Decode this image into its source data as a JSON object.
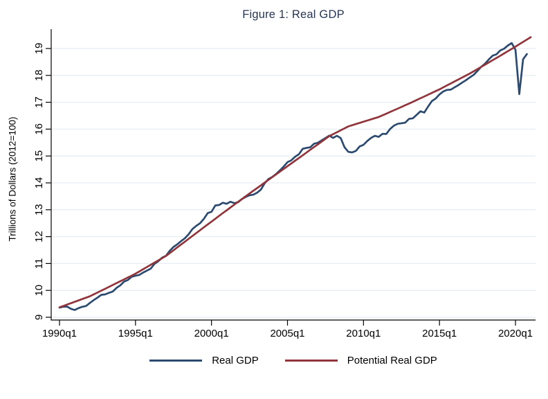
{
  "figure": {
    "title": "Figure 1: Real GDP",
    "y_axis_title": "Trillions of Dollars (2012=100)"
  },
  "chart_data": {
    "type": "line",
    "title": "Figure 1: Real GDP",
    "xlabel": "",
    "ylabel": "Trillions of Dollars (2012=100)",
    "x_unit": "quarter",
    "x_start": "1990q1",
    "x_tick_labels": [
      "1990q1",
      "1995q1",
      "2000q1",
      "2005q1",
      "2010q1",
      "2015q1",
      "2020q1"
    ],
    "x_tick_step_quarters": 20,
    "y_ticks": [
      9,
      10,
      11,
      12,
      13,
      14,
      15,
      16,
      17,
      18,
      19
    ],
    "ylim": [
      8.9,
      19.7
    ],
    "grid": "horizontal",
    "legend_position": "bottom-center",
    "colors": {
      "title": "#283553",
      "axis": "#000000",
      "grid": "#e7eef3",
      "real_gdp_line": "#2b4a6e",
      "potential_line": "#90353b"
    },
    "series": [
      {
        "name": "Real GDP",
        "color": "#2b4a6e",
        "start": "1990q1",
        "end": "2020q4",
        "values": [
          9.358,
          9.392,
          9.398,
          9.314,
          9.27,
          9.341,
          9.388,
          9.421,
          9.534,
          9.637,
          9.732,
          9.834,
          9.851,
          9.908,
          9.956,
          10.092,
          10.189,
          10.327,
          10.387,
          10.506,
          10.543,
          10.575,
          10.662,
          10.734,
          10.808,
          10.988,
          11.086,
          11.216,
          11.284,
          11.472,
          11.615,
          11.715,
          11.832,
          11.942,
          12.091,
          12.287,
          12.403,
          12.499,
          12.662,
          12.877,
          12.924,
          13.161,
          13.178,
          13.26,
          13.222,
          13.3,
          13.244,
          13.28,
          13.397,
          13.478,
          13.538,
          13.559,
          13.634,
          13.751,
          13.985,
          14.145,
          14.221,
          14.329,
          14.464,
          14.609,
          14.771,
          14.839,
          14.972,
          15.066,
          15.267,
          15.302,
          15.326,
          15.456,
          15.494,
          15.582,
          15.667,
          15.761,
          15.672,
          15.752,
          15.667,
          15.328,
          15.155,
          15.134,
          15.189,
          15.356,
          15.415,
          15.557,
          15.672,
          15.75,
          15.712,
          15.825,
          15.82,
          16.004,
          16.129,
          16.198,
          16.22,
          16.24,
          16.382,
          16.403,
          16.532,
          16.664,
          16.616,
          16.841,
          17.044,
          17.14,
          17.29,
          17.402,
          17.46,
          17.468,
          17.557,
          17.64,
          17.735,
          17.824,
          17.925,
          18.021,
          18.164,
          18.322,
          18.438,
          18.598,
          18.732,
          18.783,
          18.927,
          18.992,
          19.112,
          19.202,
          18.952,
          17.302,
          18.597,
          18.794
        ]
      },
      {
        "name": "Potential Real GDP",
        "color": "#90353b",
        "start": "1990q1",
        "end": "2021q1",
        "values": [
          9.37,
          9.421,
          9.473,
          9.524,
          9.575,
          9.626,
          9.678,
          9.729,
          9.78,
          9.85,
          9.92,
          9.99,
          10.06,
          10.13,
          10.2,
          10.27,
          10.34,
          10.41,
          10.48,
          10.55,
          10.62,
          10.703,
          10.785,
          10.868,
          10.95,
          11.033,
          11.115,
          11.198,
          11.28,
          11.387,
          11.493,
          11.6,
          11.707,
          11.813,
          11.92,
          12.027,
          12.133,
          12.24,
          12.347,
          12.453,
          12.56,
          12.665,
          12.77,
          12.875,
          12.98,
          13.085,
          13.19,
          13.295,
          13.4,
          13.502,
          13.603,
          13.705,
          13.807,
          13.908,
          14.01,
          14.112,
          14.213,
          14.315,
          14.417,
          14.518,
          14.62,
          14.722,
          14.824,
          14.925,
          15.027,
          15.129,
          15.231,
          15.333,
          15.434,
          15.536,
          15.638,
          15.74,
          15.812,
          15.884,
          15.956,
          16.028,
          16.1,
          16.144,
          16.188,
          16.231,
          16.275,
          16.319,
          16.363,
          16.406,
          16.45,
          16.513,
          16.575,
          16.638,
          16.7,
          16.763,
          16.825,
          16.888,
          16.95,
          17.016,
          17.083,
          17.149,
          17.215,
          17.281,
          17.348,
          17.414,
          17.48,
          17.554,
          17.628,
          17.701,
          17.775,
          17.849,
          17.923,
          17.996,
          18.07,
          18.153,
          18.235,
          18.318,
          18.4,
          18.483,
          18.565,
          18.648,
          18.73,
          18.815,
          18.9,
          18.985,
          19.07,
          19.158,
          19.245,
          19.333,
          19.42
        ]
      }
    ]
  }
}
